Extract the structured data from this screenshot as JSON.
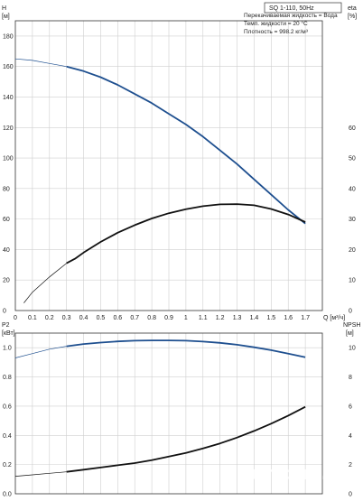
{
  "chart_data": [
    {
      "type": "line",
      "title": "SQ 1-110, 50Hz",
      "notes": [
        "Перекачиваемая жидкость = Вода",
        "Темп. жидкости = 20 °C",
        "Плотность = 998.2 кг/м³"
      ],
      "left_axis": {
        "label": "H",
        "unit": "[м]",
        "range": [
          0,
          190
        ],
        "ticks": [
          0,
          20,
          40,
          60,
          80,
          100,
          120,
          140,
          160,
          180
        ]
      },
      "right_axis": {
        "label": "eta",
        "unit": "[%]",
        "range": [
          0,
          95
        ],
        "ticks": [
          0,
          10,
          20,
          30,
          40,
          50,
          60
        ]
      },
      "x_axis": {
        "label": "Q",
        "unit": "[м³/ч]",
        "range": [
          0,
          1.8
        ],
        "ticks": [
          0,
          0.1,
          0.2,
          0.3,
          0.4,
          0.5,
          0.6,
          0.7,
          0.8,
          0.9,
          1.0,
          1.1,
          1.2,
          1.3,
          1.4,
          1.5,
          1.6,
          1.7
        ]
      },
      "series": [
        {
          "axis": "left",
          "color": "#1e4f8f",
          "thin_until": 0.33,
          "x": [
            0,
            0.1,
            0.2,
            0.3,
            0.4,
            0.5,
            0.6,
            0.7,
            0.8,
            0.9,
            1.0,
            1.1,
            1.2,
            1.3,
            1.4,
            1.5,
            1.6,
            1.7
          ],
          "y": [
            165,
            164,
            162,
            160,
            157,
            153,
            148,
            142,
            136,
            129,
            122,
            114,
            105,
            96,
            86,
            76,
            66,
            57
          ]
        },
        {
          "axis": "right",
          "color": "#111111",
          "thin_until": 0.35,
          "x": [
            0.05,
            0.1,
            0.2,
            0.3,
            0.35,
            0.4,
            0.5,
            0.6,
            0.7,
            0.8,
            0.9,
            1.0,
            1.1,
            1.2,
            1.3,
            1.4,
            1.5,
            1.6,
            1.7
          ],
          "y": [
            2.5,
            6,
            11,
            15.5,
            17,
            19,
            22.5,
            25.5,
            28,
            30.2,
            31.9,
            33.2,
            34.2,
            34.8,
            34.9,
            34.5,
            33.3,
            31.5,
            29
          ]
        }
      ]
    },
    {
      "type": "line",
      "left_axis": {
        "label": "P2",
        "unit": "[кВт]",
        "range": [
          0,
          1.1
        ],
        "ticks": [
          0,
          0.2,
          0.4,
          0.6,
          0.8,
          1.0
        ]
      },
      "right_axis": {
        "label": "NPSH",
        "unit": "[м]",
        "range": [
          0,
          11
        ],
        "ticks": [
          0,
          2,
          4,
          6,
          8,
          10
        ]
      },
      "x_axis": {
        "range": [
          0,
          1.8
        ]
      },
      "series": [
        {
          "axis": "left",
          "color": "#1e4f8f",
          "thin_until": 0.35,
          "x": [
            0,
            0.1,
            0.2,
            0.3,
            0.4,
            0.5,
            0.6,
            0.7,
            0.8,
            0.9,
            1.0,
            1.1,
            1.2,
            1.3,
            1.4,
            1.5,
            1.6,
            1.7
          ],
          "y": [
            0.93,
            0.96,
            0.99,
            1.01,
            1.025,
            1.035,
            1.043,
            1.048,
            1.05,
            1.05,
            1.048,
            1.042,
            1.033,
            1.02,
            1.003,
            0.983,
            0.96,
            0.935
          ]
        },
        {
          "axis": "left",
          "color": "#111111",
          "thin_until": 0.35,
          "x": [
            0,
            0.1,
            0.2,
            0.3,
            0.4,
            0.5,
            0.6,
            0.7,
            0.8,
            0.9,
            1.0,
            1.1,
            1.2,
            1.3,
            1.4,
            1.5,
            1.6,
            1.7
          ],
          "y": [
            0.12,
            0.13,
            0.14,
            0.15,
            0.165,
            0.18,
            0.195,
            0.21,
            0.23,
            0.255,
            0.28,
            0.31,
            0.345,
            0.385,
            0.43,
            0.48,
            0.535,
            0.595
          ]
        }
      ]
    }
  ],
  "watermark": "nuitcom.by"
}
